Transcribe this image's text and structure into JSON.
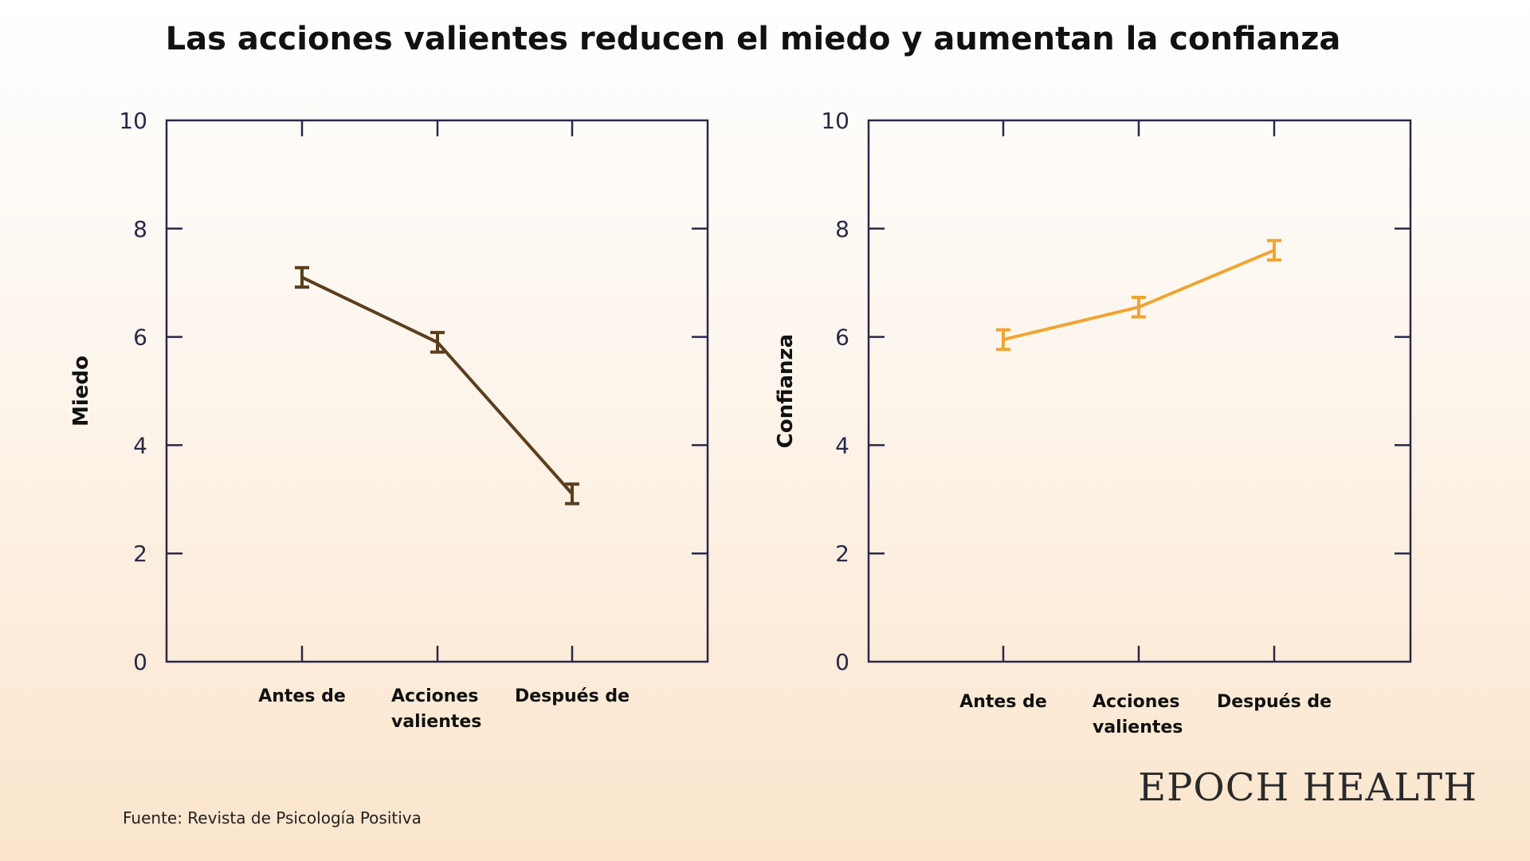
{
  "title": "Las acciones valientes reducen el miedo y aumentan la confianza",
  "source": "Fuente: Revista de Psicología Positiva",
  "brand": "EPOCH HEALTH",
  "chart_data": [
    {
      "type": "line",
      "categories": [
        [
          "Antes de"
        ],
        [
          "Acciones",
          "valientes"
        ],
        [
          "Después de"
        ]
      ],
      "values": [
        7.1,
        5.9,
        3.1
      ],
      "error": [
        0.18,
        0.18,
        0.18
      ],
      "ylabel": "Miedo",
      "ylim": [
        0,
        10
      ],
      "yticks": [
        0,
        2,
        4,
        6,
        8,
        10
      ],
      "color": "#5b3e1d",
      "grid": false
    },
    {
      "type": "line",
      "categories": [
        [
          "Antes de"
        ],
        [
          "Acciones",
          "valientes"
        ],
        [
          "Después de"
        ]
      ],
      "values": [
        5.95,
        6.55,
        7.6
      ],
      "error": [
        0.18,
        0.18,
        0.18
      ],
      "ylabel": "Confianza",
      "ylim": [
        0,
        10
      ],
      "yticks": [
        0,
        2,
        4,
        6,
        8,
        10
      ],
      "color": "#f0a431",
      "grid": false
    }
  ]
}
